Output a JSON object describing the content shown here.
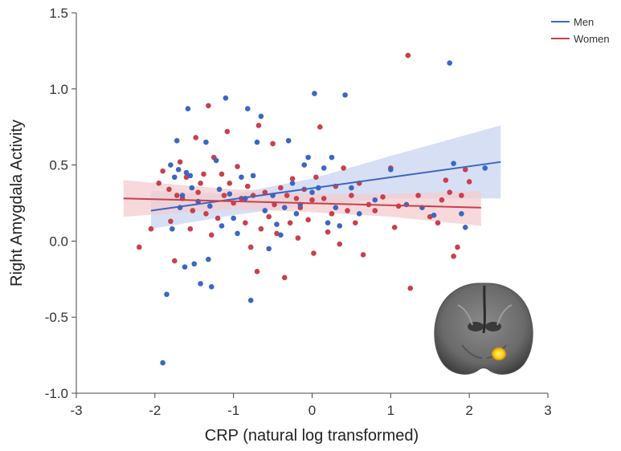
{
  "chart_data": {
    "type": "scatter",
    "xlabel": "CRP (natural log transformed)",
    "ylabel": "Right Amygdala Activity",
    "xlim": [
      -3,
      3
    ],
    "ylim": [
      -1.0,
      1.5
    ],
    "xticks": [
      "-3",
      "-2",
      "-1",
      "0",
      "1",
      "2",
      "3"
    ],
    "yticks": [
      "-1.0",
      "-0.5",
      "0.0",
      "0.5",
      "1.0",
      "1.5"
    ],
    "grid": false,
    "legend_position": "top-right",
    "series": [
      {
        "name": "Men",
        "color": "#3a66c4",
        "band_color": "#c9d4f2",
        "fit": {
          "x": [
            -2.05,
            2.4
          ],
          "y": [
            0.2,
            0.52
          ]
        },
        "band": {
          "x": [
            -2.05,
            -1.0,
            0.0,
            1.0,
            2.4
          ],
          "upper": [
            0.33,
            0.31,
            0.41,
            0.56,
            0.76
          ],
          "lower": [
            0.08,
            0.17,
            0.24,
            0.28,
            0.28
          ]
        },
        "points": [
          [
            -1.9,
            -0.8
          ],
          [
            -1.85,
            -0.35
          ],
          [
            -1.8,
            0.5
          ],
          [
            -1.78,
            0.08
          ],
          [
            -1.75,
            0.42
          ],
          [
            -1.72,
            0.66
          ],
          [
            -1.7,
            0.47
          ],
          [
            -1.68,
            0.22
          ],
          [
            -1.65,
            0.3
          ],
          [
            -1.62,
            -0.17
          ],
          [
            -1.6,
            0.45
          ],
          [
            -1.58,
            0.87
          ],
          [
            -1.55,
            0.43
          ],
          [
            -1.53,
            0.35
          ],
          [
            -1.5,
            -0.15
          ],
          [
            -1.45,
            0.26
          ],
          [
            -1.42,
            -0.28
          ],
          [
            -1.35,
            0.65
          ],
          [
            -1.32,
            -0.12
          ],
          [
            -1.3,
            0.23
          ],
          [
            -1.28,
            -0.3
          ],
          [
            -1.22,
            0.53
          ],
          [
            -1.18,
            0.34
          ],
          [
            -1.15,
            0.1
          ],
          [
            -1.1,
            0.94
          ],
          [
            -1.05,
            0.31
          ],
          [
            -1.0,
            0.15
          ],
          [
            -0.95,
            0.05
          ],
          [
            -0.9,
            0.42
          ],
          [
            -0.85,
            0.28
          ],
          [
            -0.82,
            0.87
          ],
          [
            -0.78,
            -0.39
          ],
          [
            -0.75,
            0.43
          ],
          [
            -0.7,
            0.65
          ],
          [
            -0.65,
            0.82
          ],
          [
            -0.6,
            0.2
          ],
          [
            -0.55,
            -0.05
          ],
          [
            -0.5,
            0.3
          ],
          [
            -0.45,
            0.11
          ],
          [
            -0.4,
            0.04
          ],
          [
            -0.35,
            0.22
          ],
          [
            -0.3,
            0.66
          ],
          [
            -0.25,
            0.38
          ],
          [
            -0.2,
            0.18
          ],
          [
            -0.15,
            0.24
          ],
          [
            -0.1,
            0.5
          ],
          [
            -0.05,
            0.55
          ],
          [
            0.0,
            0.32
          ],
          [
            0.03,
            0.97
          ],
          [
            0.08,
            0.35
          ],
          [
            0.15,
            0.48
          ],
          [
            0.2,
            0.12
          ],
          [
            0.25,
            0.55
          ],
          [
            0.3,
            0.22
          ],
          [
            0.35,
            0.1
          ],
          [
            0.42,
            0.96
          ],
          [
            0.5,
            0.35
          ],
          [
            0.6,
            0.18
          ],
          [
            0.8,
            0.27
          ],
          [
            1.0,
            0.47
          ],
          [
            1.2,
            0.24
          ],
          [
            1.4,
            0.22
          ],
          [
            1.55,
            0.17
          ],
          [
            1.75,
            1.17
          ],
          [
            1.8,
            0.51
          ],
          [
            1.9,
            0.18
          ],
          [
            1.95,
            0.09
          ],
          [
            2.2,
            0.48
          ]
        ]
      },
      {
        "name": "Women",
        "color": "#c8404b",
        "band_color": "#f4cccf",
        "fit": {
          "x": [
            -2.4,
            2.15
          ],
          "y": [
            0.28,
            0.22
          ]
        },
        "band": {
          "x": [
            -2.4,
            -1.0,
            0.0,
            1.0,
            2.15
          ],
          "upper": [
            0.4,
            0.34,
            0.31,
            0.31,
            0.33
          ],
          "lower": [
            0.16,
            0.21,
            0.19,
            0.16,
            0.1
          ]
        },
        "points": [
          [
            -2.2,
            -0.04
          ],
          [
            -2.05,
            0.08
          ],
          [
            -1.95,
            0.38
          ],
          [
            -1.9,
            0.46
          ],
          [
            -1.82,
            0.34
          ],
          [
            -1.8,
            0.13
          ],
          [
            -1.75,
            -0.13
          ],
          [
            -1.72,
            0.3
          ],
          [
            -1.68,
            0.52
          ],
          [
            -1.65,
            0.28
          ],
          [
            -1.6,
            0.42
          ],
          [
            -1.55,
            0.08
          ],
          [
            -1.52,
            0.2
          ],
          [
            -1.48,
            0.68
          ],
          [
            -1.45,
            0.32
          ],
          [
            -1.42,
            0.38
          ],
          [
            -1.38,
            0.44
          ],
          [
            -1.35,
            0.18
          ],
          [
            -1.32,
            0.89
          ],
          [
            -1.28,
            0.04
          ],
          [
            -1.25,
            0.55
          ],
          [
            -1.2,
            0.15
          ],
          [
            -1.15,
            0.44
          ],
          [
            -1.12,
            0.3
          ],
          [
            -1.08,
            0.72
          ],
          [
            -1.05,
            0.38
          ],
          [
            -1.0,
            0.25
          ],
          [
            -0.95,
            0.49
          ],
          [
            -0.9,
            0.28
          ],
          [
            -0.85,
            0.12
          ],
          [
            -0.82,
            0.36
          ],
          [
            -0.78,
            -0.04
          ],
          [
            -0.75,
            0.3
          ],
          [
            -0.7,
            -0.2
          ],
          [
            -0.68,
            0.76
          ],
          [
            -0.65,
            0.08
          ],
          [
            -0.6,
            0.32
          ],
          [
            -0.55,
            0.16
          ],
          [
            -0.5,
            0.64
          ],
          [
            -0.48,
            0.24
          ],
          [
            -0.45,
            0.05
          ],
          [
            -0.4,
            0.35
          ],
          [
            -0.35,
            -0.24
          ],
          [
            -0.32,
            0.3
          ],
          [
            -0.28,
            0.12
          ],
          [
            -0.25,
            0.41
          ],
          [
            -0.2,
            0.28
          ],
          [
            -0.18,
            0.02
          ],
          [
            -0.15,
            0.22
          ],
          [
            -0.1,
            0.34
          ],
          [
            -0.05,
            0.14
          ],
          [
            0.0,
            0.27
          ],
          [
            0.02,
            -0.08
          ],
          [
            0.05,
            0.42
          ],
          [
            0.1,
            0.75
          ],
          [
            0.15,
            0.28
          ],
          [
            0.2,
            0.06
          ],
          [
            0.25,
            0.18
          ],
          [
            0.3,
            0.36
          ],
          [
            0.35,
            -0.02
          ],
          [
            0.4,
            0.48
          ],
          [
            0.45,
            0.2
          ],
          [
            0.5,
            0.3
          ],
          [
            0.55,
            0.12
          ],
          [
            0.6,
            0.38
          ],
          [
            0.65,
            -0.09
          ],
          [
            0.72,
            0.24
          ],
          [
            0.8,
            0.2
          ],
          [
            0.9,
            0.29
          ],
          [
            1.0,
            0.48
          ],
          [
            1.05,
            0.09
          ],
          [
            1.1,
            0.23
          ],
          [
            1.22,
            1.22
          ],
          [
            1.25,
            -0.31
          ],
          [
            1.35,
            0.3
          ],
          [
            1.5,
            0.16
          ],
          [
            1.6,
            0.12
          ],
          [
            1.65,
            0.27
          ],
          [
            1.7,
            0.4
          ],
          [
            1.75,
            0.32
          ],
          [
            1.8,
            -0.1
          ],
          [
            1.85,
            -0.04
          ],
          [
            1.9,
            0.3
          ],
          [
            1.95,
            0.47
          ],
          [
            2.0,
            0.39
          ]
        ]
      }
    ]
  },
  "inset": {
    "icon": "brain-mri-icon",
    "highlight_color": "#ffd21f"
  }
}
